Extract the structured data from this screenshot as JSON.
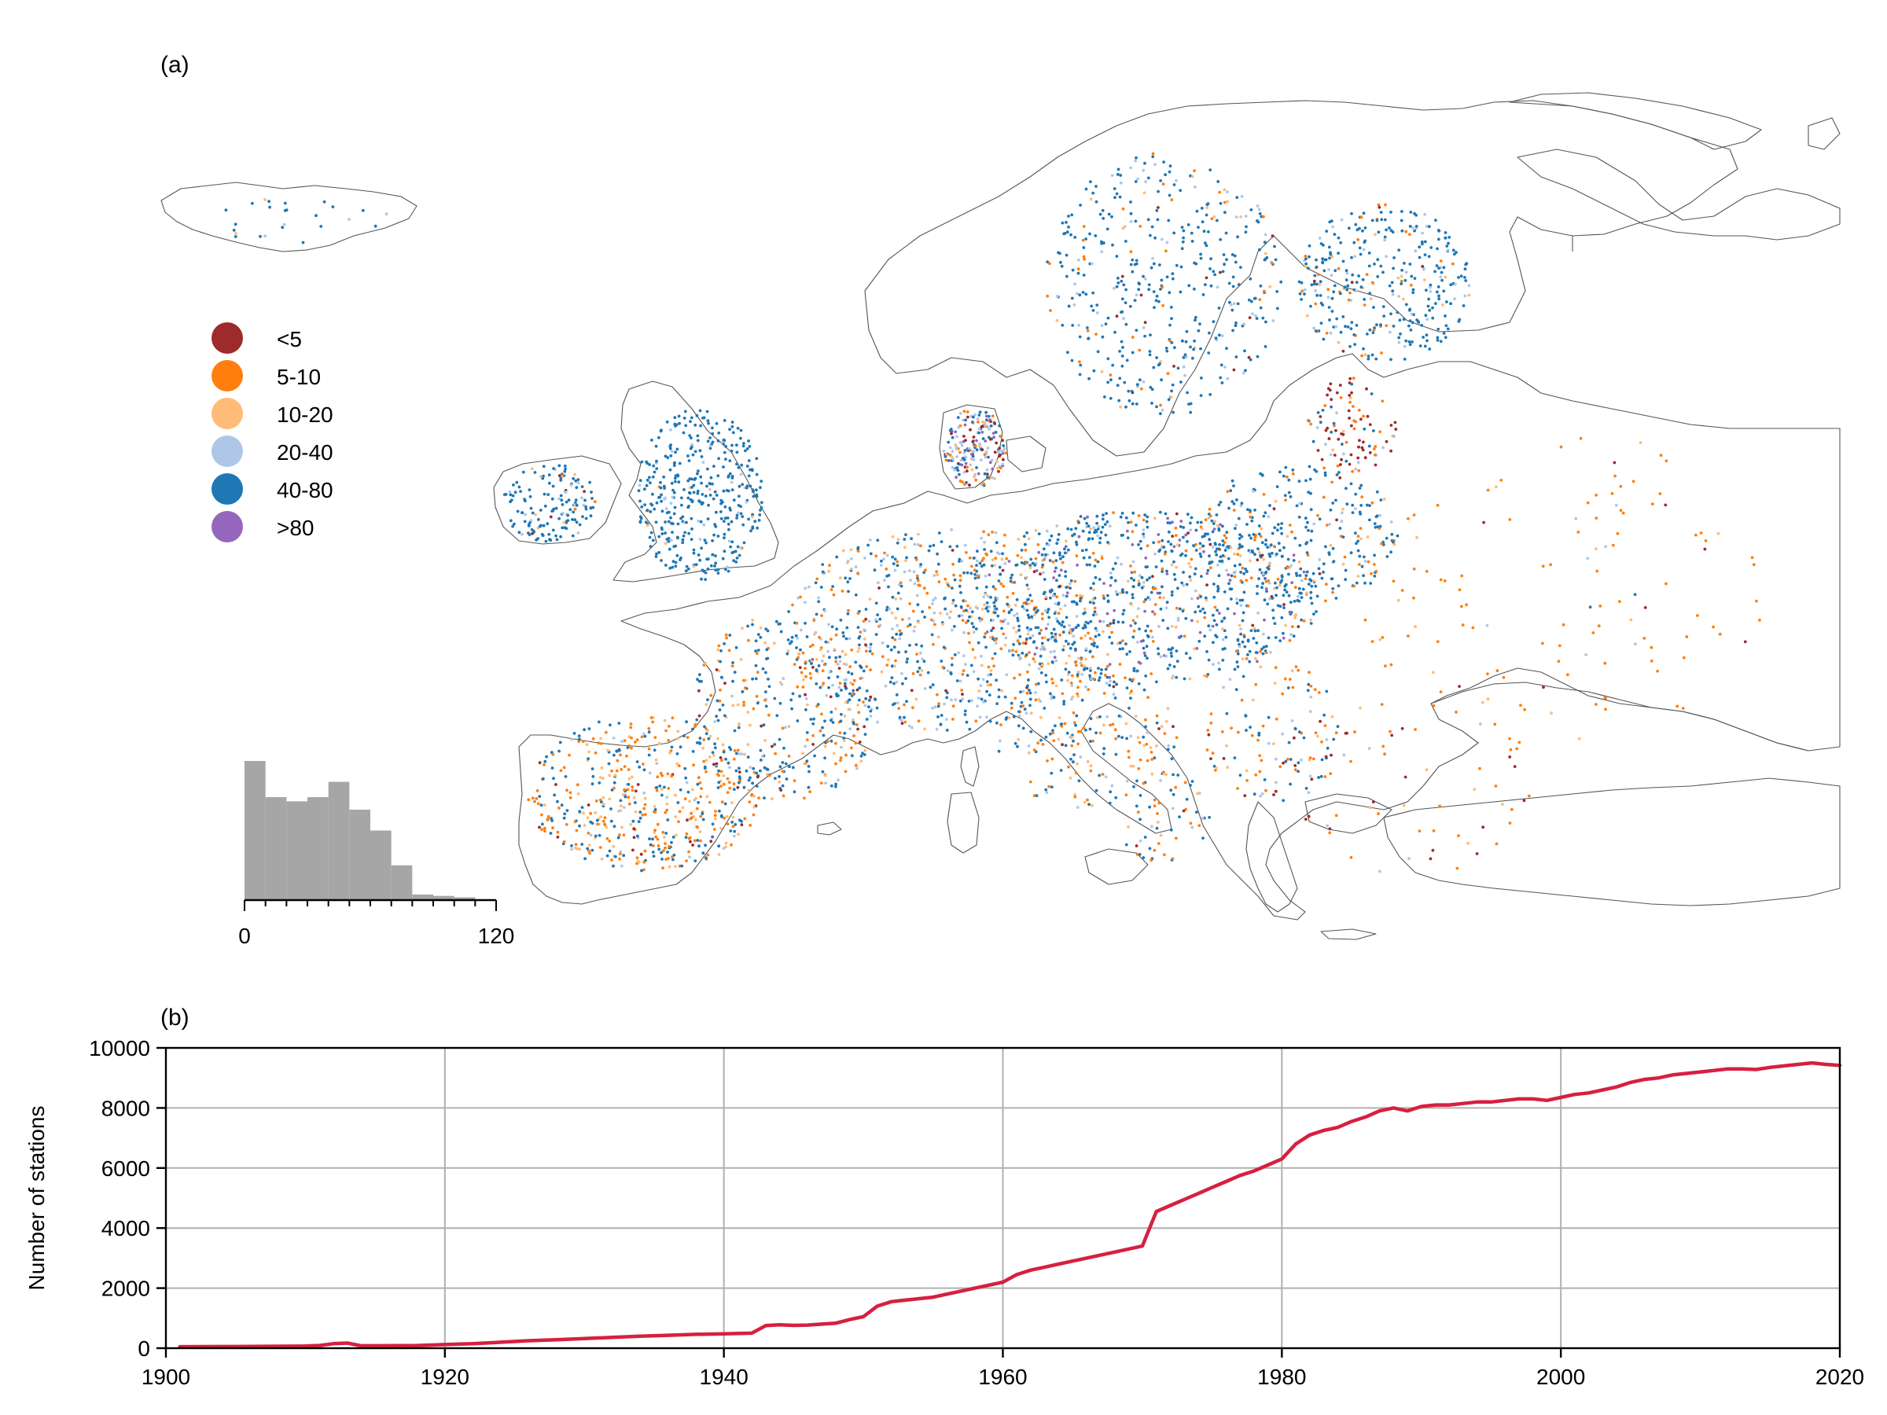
{
  "panel_a": {
    "label": "(a)",
    "legend": [
      {
        "label": "<5",
        "color": "#9e2a2b"
      },
      {
        "label": "5-10",
        "color": "#ff7f0e"
      },
      {
        "label": "10-20",
        "color": "#ffbb78"
      },
      {
        "label": "20-40",
        "color": "#aec7e8"
      },
      {
        "label": "40-80",
        "color": "#1f77b4"
      },
      {
        "label": ">80",
        "color": "#9467bd"
      }
    ],
    "histogram": {
      "xmin_label": "0",
      "xmax_label": "120",
      "bar_color": "#a6a6a6"
    }
  },
  "panel_b": {
    "label": "(b)",
    "line_color": "#d6203f"
  },
  "chart_data": [
    {
      "type": "scatter",
      "description_level": "map of station locations colored by record length (years)",
      "legend_entries": [
        "<5",
        "5-10",
        "10-20",
        "20-40",
        "40-80",
        ">80"
      ],
      "legend_colors": [
        "#9e2a2b",
        "#ff7f0e",
        "#ffbb78",
        "#aec7e8",
        "#1f77b4",
        "#9467bd"
      ]
    },
    {
      "type": "bar",
      "xlim": [
        0,
        120
      ],
      "bin_edges": [
        0,
        10,
        20,
        30,
        40,
        50,
        60,
        70,
        80,
        90,
        100,
        110,
        120
      ],
      "values": [
        1.0,
        0.74,
        0.71,
        0.74,
        0.85,
        0.65,
        0.5,
        0.25,
        0.04,
        0.03,
        0.02,
        0.0
      ],
      "xticks": [
        "0",
        "120"
      ]
    },
    {
      "type": "line",
      "title": "",
      "xlabel": "",
      "ylabel": "Number of stations",
      "xlim": [
        1900,
        2020
      ],
      "ylim": [
        0,
        10000
      ],
      "xticks": [
        "1900",
        "1920",
        "1940",
        "1960",
        "1980",
        "2000",
        "2020"
      ],
      "yticks": [
        "0",
        "2000",
        "4000",
        "6000",
        "8000",
        "10000"
      ],
      "grid": true,
      "x": [
        1901,
        1905,
        1910,
        1911,
        1912,
        1913,
        1914,
        1915,
        1918,
        1920,
        1922,
        1924,
        1926,
        1928,
        1930,
        1932,
        1934,
        1936,
        1938,
        1940,
        1942,
        1943,
        1944,
        1945,
        1946,
        1947,
        1948,
        1949,
        1950,
        1951,
        1952,
        1953,
        1954,
        1955,
        1956,
        1957,
        1958,
        1959,
        1960,
        1961,
        1962,
        1963,
        1964,
        1965,
        1966,
        1967,
        1968,
        1969,
        1970,
        1971,
        1972,
        1973,
        1974,
        1975,
        1976,
        1977,
        1978,
        1979,
        1980,
        1981,
        1982,
        1983,
        1984,
        1985,
        1986,
        1987,
        1988,
        1989,
        1990,
        1991,
        1992,
        1993,
        1994,
        1995,
        1996,
        1997,
        1998,
        1999,
        2000,
        2001,
        2002,
        2003,
        2004,
        2005,
        2006,
        2007,
        2008,
        2009,
        2010,
        2011,
        2012,
        2013,
        2014,
        2015,
        2016,
        2017,
        2018,
        2019,
        2020
      ],
      "values": [
        50,
        55,
        70,
        90,
        150,
        170,
        80,
        80,
        90,
        120,
        150,
        200,
        250,
        280,
        320,
        360,
        400,
        430,
        460,
        480,
        500,
        750,
        780,
        760,
        770,
        800,
        830,
        950,
        1050,
        1400,
        1550,
        1600,
        1650,
        1700,
        1800,
        1900,
        2000,
        2100,
        2200,
        2450,
        2600,
        2700,
        2800,
        2900,
        3000,
        3100,
        3200,
        3300,
        3400,
        4550,
        4750,
        4950,
        5150,
        5350,
        5550,
        5750,
        5900,
        6100,
        6300,
        6800,
        7100,
        7250,
        7350,
        7550,
        7700,
        7900,
        8000,
        7900,
        8050,
        8100,
        8100,
        8150,
        8200,
        8200,
        8250,
        8300,
        8300,
        8250,
        8350,
        8450,
        8500,
        8600,
        8700,
        8850,
        8950,
        9000,
        9100,
        9150,
        9200,
        9250,
        9300,
        9300,
        9280,
        9350,
        9400,
        9450,
        9500,
        9450,
        9420
      ]
    }
  ]
}
